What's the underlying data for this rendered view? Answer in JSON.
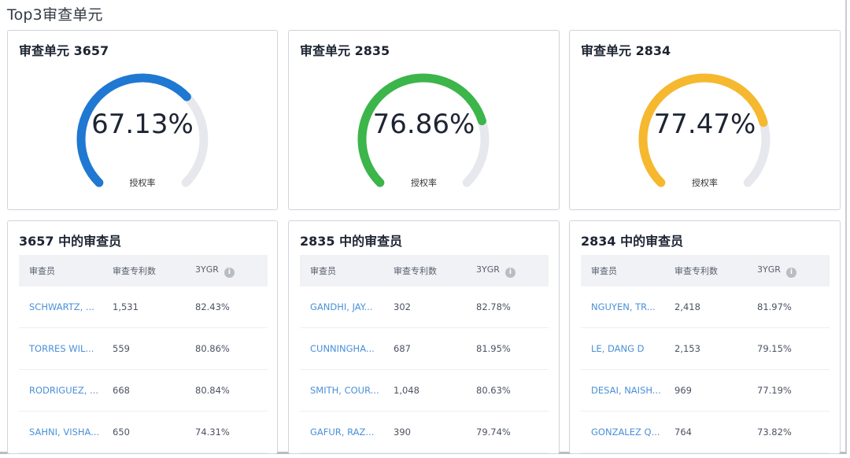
{
  "section_title": "Top3审查单元",
  "gauge_caption": "授权率",
  "gauges": [
    {
      "title": "审查单元 3657",
      "value_text": "67.13%",
      "value": 0.6713,
      "color": "#1f78d1"
    },
    {
      "title": "审查单元 2835",
      "value_text": "76.86%",
      "value": 0.7686,
      "color": "#3cb54a"
    },
    {
      "title": "审查单元 2834",
      "value_text": "77.47%",
      "value": 0.7747,
      "color": "#f5b82e"
    }
  ],
  "track_color": "#e6e8ee",
  "table_headers": {
    "examiner": "审查员",
    "patents": "审查专利数",
    "ygr": "3YGR"
  },
  "tables": [
    {
      "title": "3657 中的审查员",
      "rows": [
        {
          "name": "SCHWARTZ, ...",
          "patents": "1,531",
          "ygr": "82.43%"
        },
        {
          "name": "TORRES WIL...",
          "patents": "559",
          "ygr": "80.86%"
        },
        {
          "name": "RODRIGUEZ, ...",
          "patents": "668",
          "ygr": "80.84%"
        },
        {
          "name": "SAHNI, VISHA...",
          "patents": "650",
          "ygr": "74.31%"
        }
      ]
    },
    {
      "title": "2835 中的审查员",
      "rows": [
        {
          "name": "GANDHI, JAY...",
          "patents": "302",
          "ygr": "82.78%"
        },
        {
          "name": "CUNNINGHA...",
          "patents": "687",
          "ygr": "81.95%"
        },
        {
          "name": "SMITH, COUR...",
          "patents": "1,048",
          "ygr": "80.63%"
        },
        {
          "name": "GAFUR, RAZ...",
          "patents": "390",
          "ygr": "79.74%"
        }
      ]
    },
    {
      "title": "2834 中的审查员",
      "rows": [
        {
          "name": "NGUYEN, TR...",
          "patents": "2,418",
          "ygr": "81.97%"
        },
        {
          "name": "LE, DANG D",
          "patents": "2,153",
          "ygr": "79.15%"
        },
        {
          "name": "DESAI, NAISH...",
          "patents": "969",
          "ygr": "77.19%"
        },
        {
          "name": "GONZALEZ Q...",
          "patents": "764",
          "ygr": "73.82%"
        }
      ]
    }
  ]
}
